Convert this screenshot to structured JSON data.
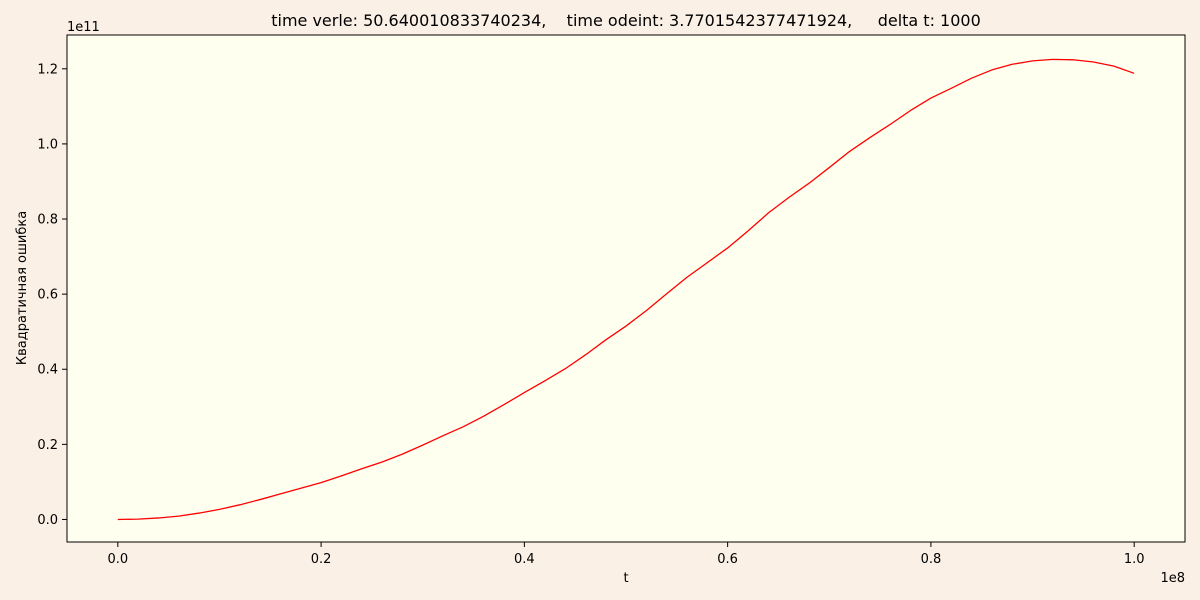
{
  "figure": {
    "background": "#faf0e6",
    "plot_background": "#fffff0",
    "line_color": "#ff0000"
  },
  "chart_data": {
    "type": "line",
    "title": "time verle: 50.640010833740234,    time odeint: 3.7701542377471924,     delta t: 1000",
    "xlabel": "t",
    "ylabel": "Квадратичная ошибка",
    "x_offset_label": "1e8",
    "y_offset_label": "1e11",
    "xlim": [
      -0.05,
      1.05
    ],
    "ylim": [
      -0.06,
      1.29
    ],
    "x_ticks": [
      0.0,
      0.2,
      0.4,
      0.6,
      0.8,
      1.0
    ],
    "x_tick_labels": [
      "0.0",
      "0.2",
      "0.4",
      "0.6",
      "0.8",
      "1.0"
    ],
    "y_ticks": [
      0.0,
      0.2,
      0.4,
      0.6,
      0.8,
      1.0,
      1.2
    ],
    "y_tick_labels": [
      "0.0",
      "0.2",
      "0.4",
      "0.6",
      "0.8",
      "1.0",
      "1.2"
    ],
    "grid": false,
    "legend": "none",
    "series": [
      {
        "color": "#ff0000",
        "x": [
          0.0,
          0.02,
          0.04,
          0.06,
          0.08,
          0.1,
          0.12,
          0.14,
          0.16,
          0.18,
          0.2,
          0.22,
          0.24,
          0.26,
          0.28,
          0.3,
          0.32,
          0.34,
          0.36,
          0.38,
          0.4,
          0.42,
          0.44,
          0.46,
          0.48,
          0.5,
          0.52,
          0.54,
          0.56,
          0.58,
          0.6,
          0.62,
          0.64,
          0.66,
          0.68,
          0.7,
          0.72,
          0.74,
          0.76,
          0.78,
          0.8,
          0.82,
          0.84,
          0.86,
          0.88,
          0.9,
          0.92,
          0.94,
          0.96,
          0.98,
          1.0
        ],
        "y": [
          0.0,
          0.001,
          0.004,
          0.009,
          0.017,
          0.027,
          0.039,
          0.053,
          0.068,
          0.083,
          0.098,
          0.116,
          0.135,
          0.153,
          0.174,
          0.198,
          0.223,
          0.247,
          0.275,
          0.306,
          0.338,
          0.369,
          0.401,
          0.438,
          0.478,
          0.515,
          0.556,
          0.601,
          0.645,
          0.684,
          0.723,
          0.768,
          0.816,
          0.857,
          0.895,
          0.937,
          0.98,
          1.017,
          1.052,
          1.089,
          1.122,
          1.148,
          1.175,
          1.197,
          1.212,
          1.221,
          1.225,
          1.224,
          1.218,
          1.207,
          1.188
        ]
      }
    ]
  }
}
